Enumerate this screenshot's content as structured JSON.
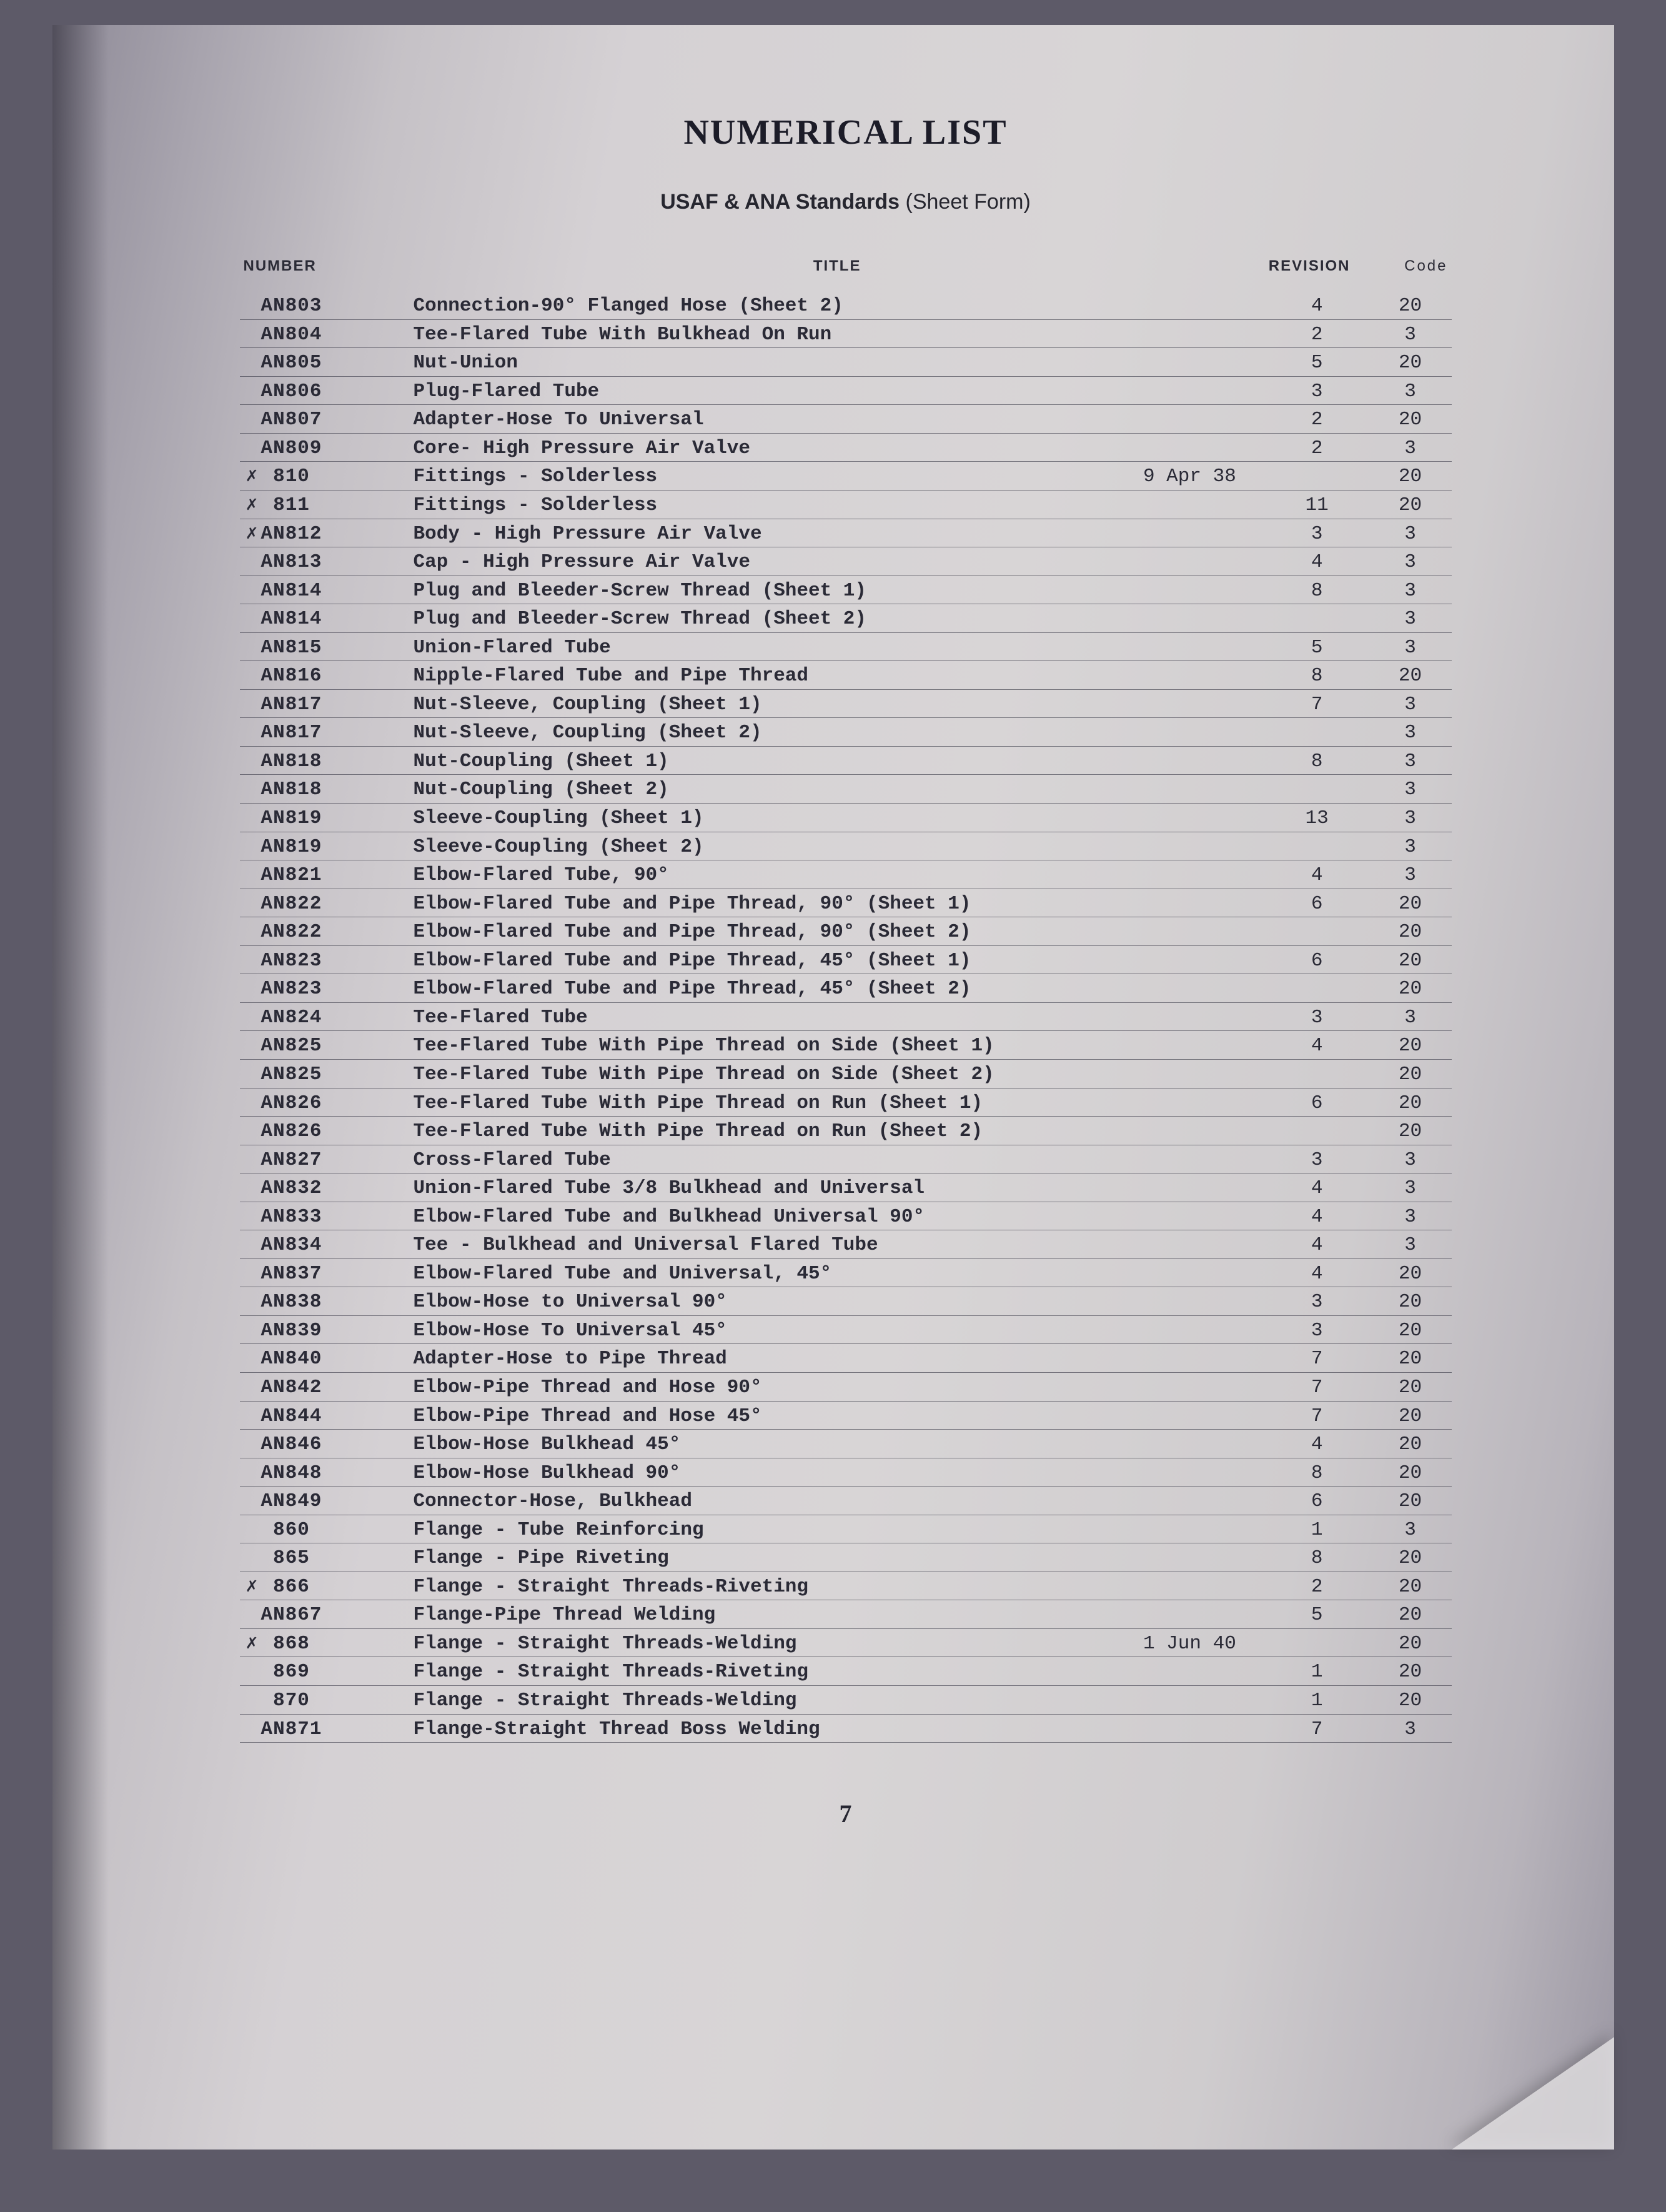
{
  "heading": "NUMERICAL LIST",
  "subheading_bold": "USAF & ANA Standards",
  "subheading_paren": "(Sheet Form)",
  "columns": {
    "number": "NUMBER",
    "title": "TITLE",
    "revision": "REVISION",
    "code": "Code"
  },
  "page_number": "7",
  "rows": [
    {
      "dag": "",
      "num": "AN803",
      "title": "Connection-90° Flanged Hose (Sheet 2)",
      "note": "",
      "rev": "4",
      "code": "20"
    },
    {
      "dag": "",
      "num": "AN804",
      "title": "Tee-Flared Tube With Bulkhead On Run",
      "note": "",
      "rev": "2",
      "code": "3"
    },
    {
      "dag": "",
      "num": "AN805",
      "title": "Nut-Union",
      "note": "",
      "rev": "5",
      "code": "20"
    },
    {
      "dag": "",
      "num": "AN806",
      "title": "Plug-Flared Tube",
      "note": "",
      "rev": "3",
      "code": "3"
    },
    {
      "dag": "",
      "num": "AN807",
      "title": "Adapter-Hose To Universal",
      "note": "",
      "rev": "2",
      "code": "20"
    },
    {
      "dag": "",
      "num": "AN809",
      "title": "Core- High Pressure Air Valve",
      "note": "",
      "rev": "2",
      "code": "3"
    },
    {
      "dag": "✗",
      "num": "  810",
      "title": "Fittings - Solderless",
      "note": "9 Apr 38",
      "rev": "",
      "code": "20"
    },
    {
      "dag": "✗",
      "num": "  811",
      "title": "Fittings - Solderless",
      "note": "",
      "rev": "11",
      "code": "20"
    },
    {
      "dag": "✗",
      "num": "AN812",
      "title": "Body - High Pressure Air Valve",
      "note": "",
      "rev": "3",
      "code": "3"
    },
    {
      "dag": "",
      "num": "AN813",
      "title": "Cap - High Pressure Air Valve",
      "note": "",
      "rev": "4",
      "code": "3"
    },
    {
      "dag": "",
      "num": "AN814",
      "title": "Plug and Bleeder-Screw Thread (Sheet 1)",
      "note": "",
      "rev": "8",
      "code": "3"
    },
    {
      "dag": "",
      "num": "AN814",
      "title": "Plug and Bleeder-Screw Thread (Sheet 2)",
      "note": "",
      "rev": "",
      "code": "3"
    },
    {
      "dag": "",
      "num": "AN815",
      "title": "Union-Flared Tube",
      "note": "",
      "rev": "5",
      "code": "3"
    },
    {
      "dag": "",
      "num": "AN816",
      "title": "Nipple-Flared Tube and Pipe Thread",
      "note": "",
      "rev": "8",
      "code": "20"
    },
    {
      "dag": "",
      "num": "AN817",
      "title": "Nut-Sleeve, Coupling (Sheet 1)",
      "note": "",
      "rev": "7",
      "code": "3"
    },
    {
      "dag": "",
      "num": "AN817",
      "title": "Nut-Sleeve, Coupling (Sheet 2)",
      "note": "",
      "rev": "",
      "code": "3"
    },
    {
      "dag": "",
      "num": "AN818",
      "title": "Nut-Coupling (Sheet 1)",
      "note": "",
      "rev": "8",
      "code": "3"
    },
    {
      "dag": "",
      "num": "AN818",
      "title": "Nut-Coupling (Sheet 2)",
      "note": "",
      "rev": "",
      "code": "3"
    },
    {
      "dag": "",
      "num": "AN819",
      "title": "Sleeve-Coupling   (Sheet 1)",
      "note": "",
      "rev": "13",
      "code": "3"
    },
    {
      "dag": "",
      "num": "AN819",
      "title": "Sleeve-Coupling (Sheet 2)",
      "note": "",
      "rev": "",
      "code": "3"
    },
    {
      "dag": "",
      "num": "AN821",
      "title": "Elbow-Flared Tube, 90°",
      "note": "",
      "rev": "4",
      "code": "3"
    },
    {
      "dag": "",
      "num": "AN822",
      "title": "Elbow-Flared Tube and Pipe Thread, 90° (Sheet 1)",
      "note": "",
      "rev": "6",
      "code": "20"
    },
    {
      "dag": "",
      "num": "AN822",
      "title": "Elbow-Flared Tube and Pipe Thread, 90° (Sheet 2)",
      "note": "",
      "rev": "",
      "code": "20"
    },
    {
      "dag": "",
      "num": "AN823",
      "title": "Elbow-Flared Tube and Pipe Thread, 45° (Sheet 1)",
      "note": "",
      "rev": "6",
      "code": "20"
    },
    {
      "dag": "",
      "num": "AN823",
      "title": "Elbow-Flared Tube and Pipe Thread, 45° (Sheet 2)",
      "note": "",
      "rev": "",
      "code": "20"
    },
    {
      "dag": "",
      "num": "AN824",
      "title": "Tee-Flared Tube",
      "note": "",
      "rev": "3",
      "code": "3"
    },
    {
      "dag": "",
      "num": "AN825",
      "title": "Tee-Flared Tube With Pipe Thread on Side (Sheet 1)",
      "note": "",
      "rev": "4",
      "code": "20"
    },
    {
      "dag": "",
      "num": "AN825",
      "title": "Tee-Flared Tube With Pipe Thread on Side (Sheet 2)",
      "note": "",
      "rev": "",
      "code": "20"
    },
    {
      "dag": "",
      "num": "AN826",
      "title": "Tee-Flared Tube With Pipe Thread on Run (Sheet 1)",
      "note": "",
      "rev": "6",
      "code": "20"
    },
    {
      "dag": "",
      "num": "AN826",
      "title": "Tee-Flared Tube With Pipe Thread on Run (Sheet 2)",
      "note": "",
      "rev": "",
      "code": "20"
    },
    {
      "dag": "",
      "num": "AN827",
      "title": "Cross-Flared Tube",
      "note": "",
      "rev": "3",
      "code": "3"
    },
    {
      "dag": "",
      "num": "AN832",
      "title": "Union-Flared Tube 3/8 Bulkhead and Universal",
      "note": "",
      "rev": "4",
      "code": "3"
    },
    {
      "dag": "",
      "num": "AN833",
      "title": "Elbow-Flared Tube and Bulkhead Universal 90°",
      "note": "",
      "rev": "4",
      "code": "3"
    },
    {
      "dag": "",
      "num": "AN834",
      "title": "Tee - Bulkhead and Universal Flared Tube",
      "note": "",
      "rev": "4",
      "code": "3"
    },
    {
      "dag": "",
      "num": "AN837",
      "title": "Elbow-Flared Tube and Universal, 45°",
      "note": "",
      "rev": "4",
      "code": "20"
    },
    {
      "dag": "",
      "num": "AN838",
      "title": "Elbow-Hose to Universal 90°",
      "note": "",
      "rev": "3",
      "code": "20"
    },
    {
      "dag": "",
      "num": "AN839",
      "title": "Elbow-Hose To Universal 45°",
      "note": "",
      "rev": "3",
      "code": "20"
    },
    {
      "dag": "",
      "num": "AN840",
      "title": "Adapter-Hose to Pipe Thread",
      "note": "",
      "rev": "7",
      "code": "20"
    },
    {
      "dag": "",
      "num": "AN842",
      "title": "Elbow-Pipe Thread and Hose 90°",
      "note": "",
      "rev": "7",
      "code": "20"
    },
    {
      "dag": "",
      "num": "AN844",
      "title": "Elbow-Pipe Thread and Hose 45°",
      "note": "",
      "rev": "7",
      "code": "20"
    },
    {
      "dag": "",
      "num": "AN846",
      "title": "Elbow-Hose Bulkhead 45°",
      "note": "",
      "rev": "4",
      "code": "20"
    },
    {
      "dag": "",
      "num": "AN848",
      "title": "Elbow-Hose Bulkhead 90°",
      "note": "",
      "rev": "8",
      "code": "20"
    },
    {
      "dag": "",
      "num": "AN849",
      "title": "Connector-Hose, Bulkhead",
      "note": "",
      "rev": "6",
      "code": "20"
    },
    {
      "dag": "",
      "num": "  860",
      "title": "Flange - Tube Reinforcing",
      "note": "",
      "rev": "1",
      "code": "3"
    },
    {
      "dag": "",
      "num": "  865",
      "title": "Flange - Pipe Riveting",
      "note": "",
      "rev": "8",
      "code": "20"
    },
    {
      "dag": "✗",
      "num": "  866",
      "title": "Flange - Straight Threads-Riveting",
      "note": "",
      "rev": "2",
      "code": "20"
    },
    {
      "dag": "",
      "num": "AN867",
      "title": "Flange-Pipe Thread Welding",
      "note": "",
      "rev": "5",
      "code": "20"
    },
    {
      "dag": "✗",
      "num": "  868",
      "title": "Flange - Straight Threads-Welding",
      "note": "1 Jun 40",
      "rev": "",
      "code": "20"
    },
    {
      "dag": "",
      "num": "  869",
      "title": "Flange - Straight Threads-Riveting",
      "note": "",
      "rev": "1",
      "code": "20"
    },
    {
      "dag": "",
      "num": "  870",
      "title": "Flange - Straight Threads-Welding",
      "note": "",
      "rev": "1",
      "code": "20"
    },
    {
      "dag": "",
      "num": "AN871",
      "title": "Flange-Straight Thread Boss Welding",
      "note": "",
      "rev": "7",
      "code": "3"
    }
  ]
}
